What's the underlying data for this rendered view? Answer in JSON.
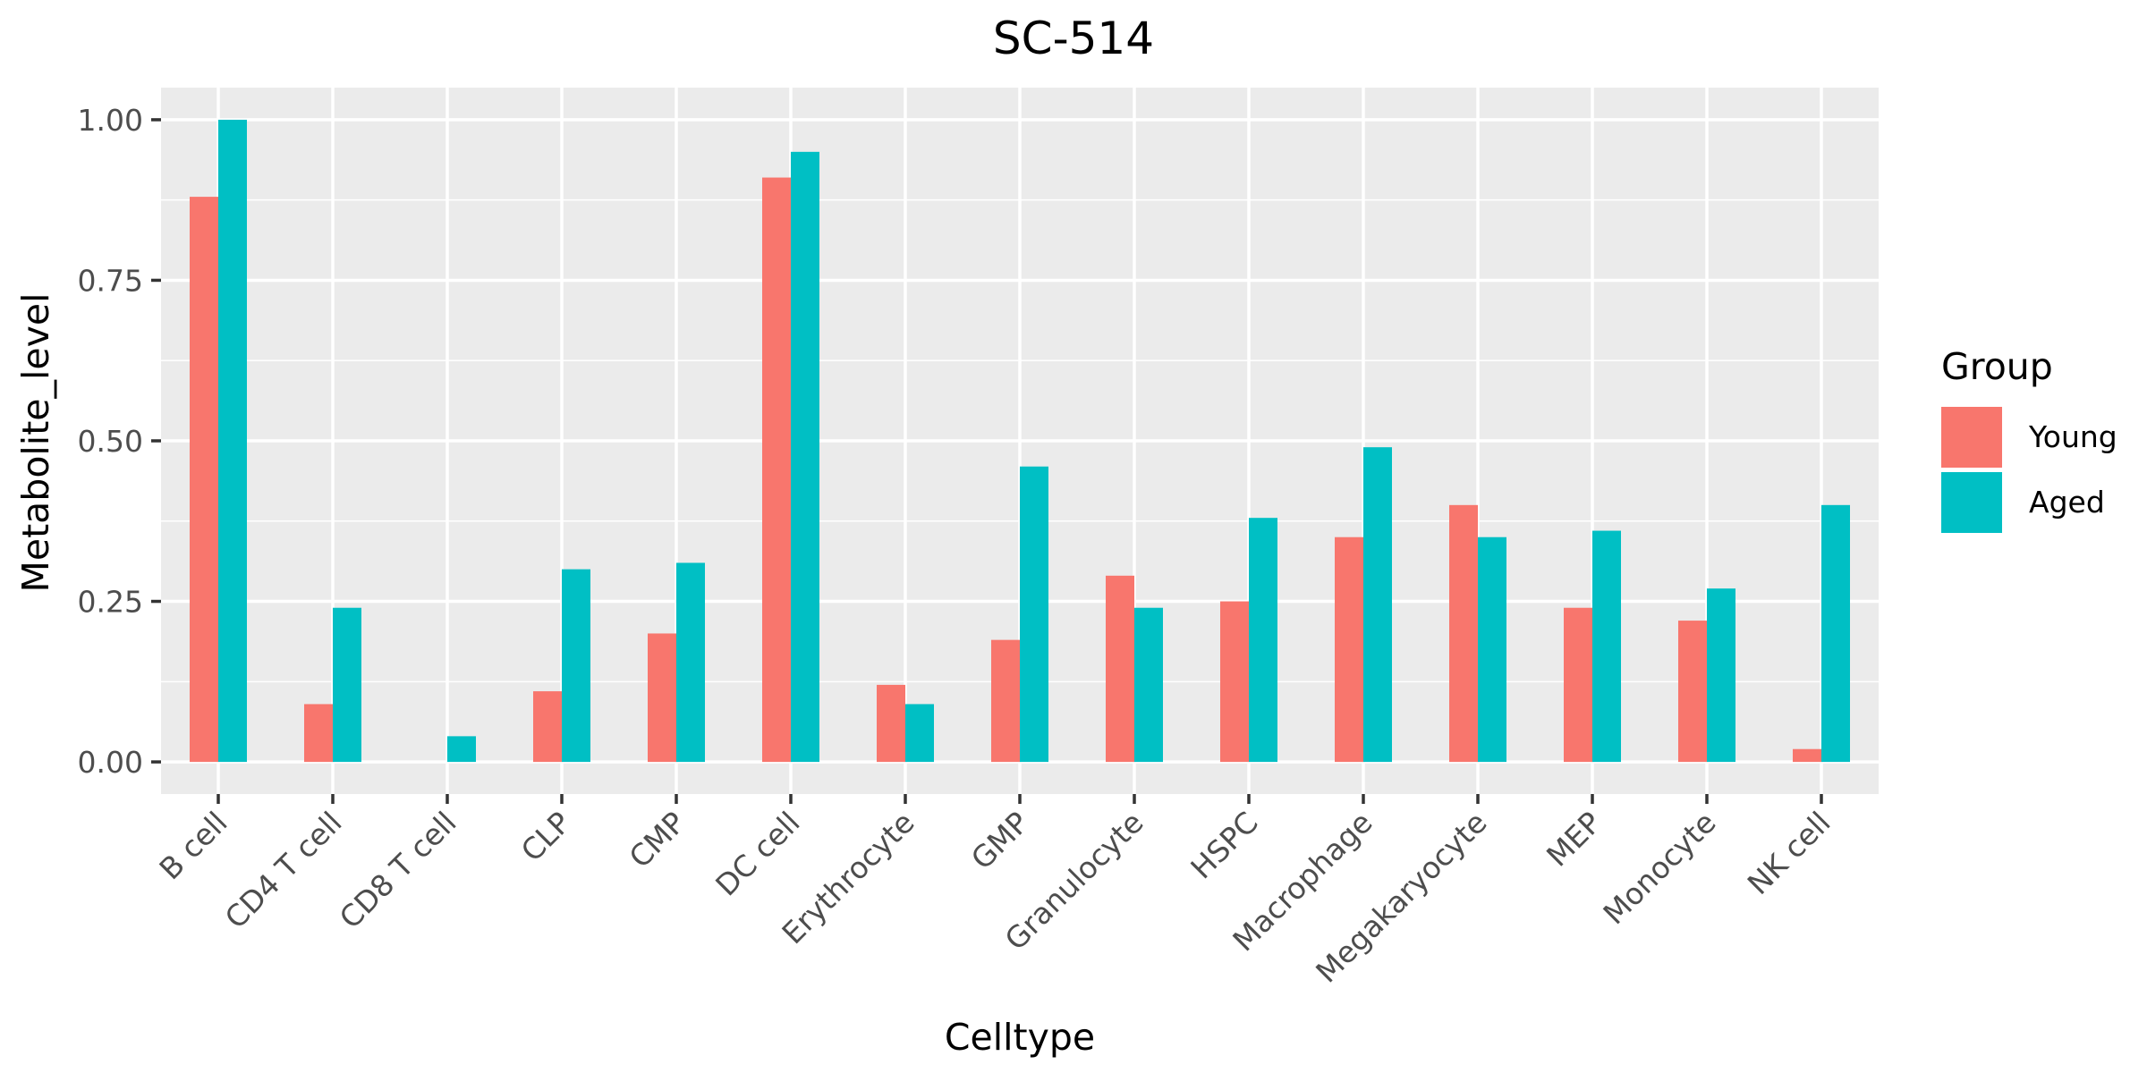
{
  "chart_data": {
    "type": "bar",
    "title": "SC-514",
    "xlabel": "Celltype",
    "ylabel": "Metabolite_level",
    "categories": [
      "B cell",
      "CD4 T cell",
      "CD8 T cell",
      "CLP",
      "CMP",
      "DC cell",
      "Erythrocyte",
      "GMP",
      "Granulocyte",
      "HSPC",
      "Macrophage",
      "Megakaryocyte",
      "MEP",
      "Monocyte",
      "NK cell"
    ],
    "series": [
      {
        "name": "Young",
        "color": "#F8766D",
        "values": [
          0.88,
          0.09,
          0.0,
          0.11,
          0.2,
          0.91,
          0.12,
          0.19,
          0.29,
          0.25,
          0.35,
          0.4,
          0.24,
          0.22,
          0.02
        ]
      },
      {
        "name": "Aged",
        "color": "#00BFC4",
        "values": [
          1.0,
          0.24,
          0.04,
          0.3,
          0.31,
          0.95,
          0.09,
          0.46,
          0.24,
          0.38,
          0.49,
          0.35,
          0.36,
          0.27,
          0.4
        ]
      }
    ],
    "ylim": [
      -0.05,
      1.05
    ],
    "yticks": [
      0.0,
      0.25,
      0.5,
      0.75,
      1.0
    ],
    "ytick_labels": [
      "0.00",
      "0.25",
      "0.50",
      "0.75",
      "1.00"
    ],
    "grid": true,
    "legend": {
      "title": "Group",
      "position": "right"
    },
    "panel_background": "#EBEBEB",
    "grid_color": "#FFFFFF"
  }
}
